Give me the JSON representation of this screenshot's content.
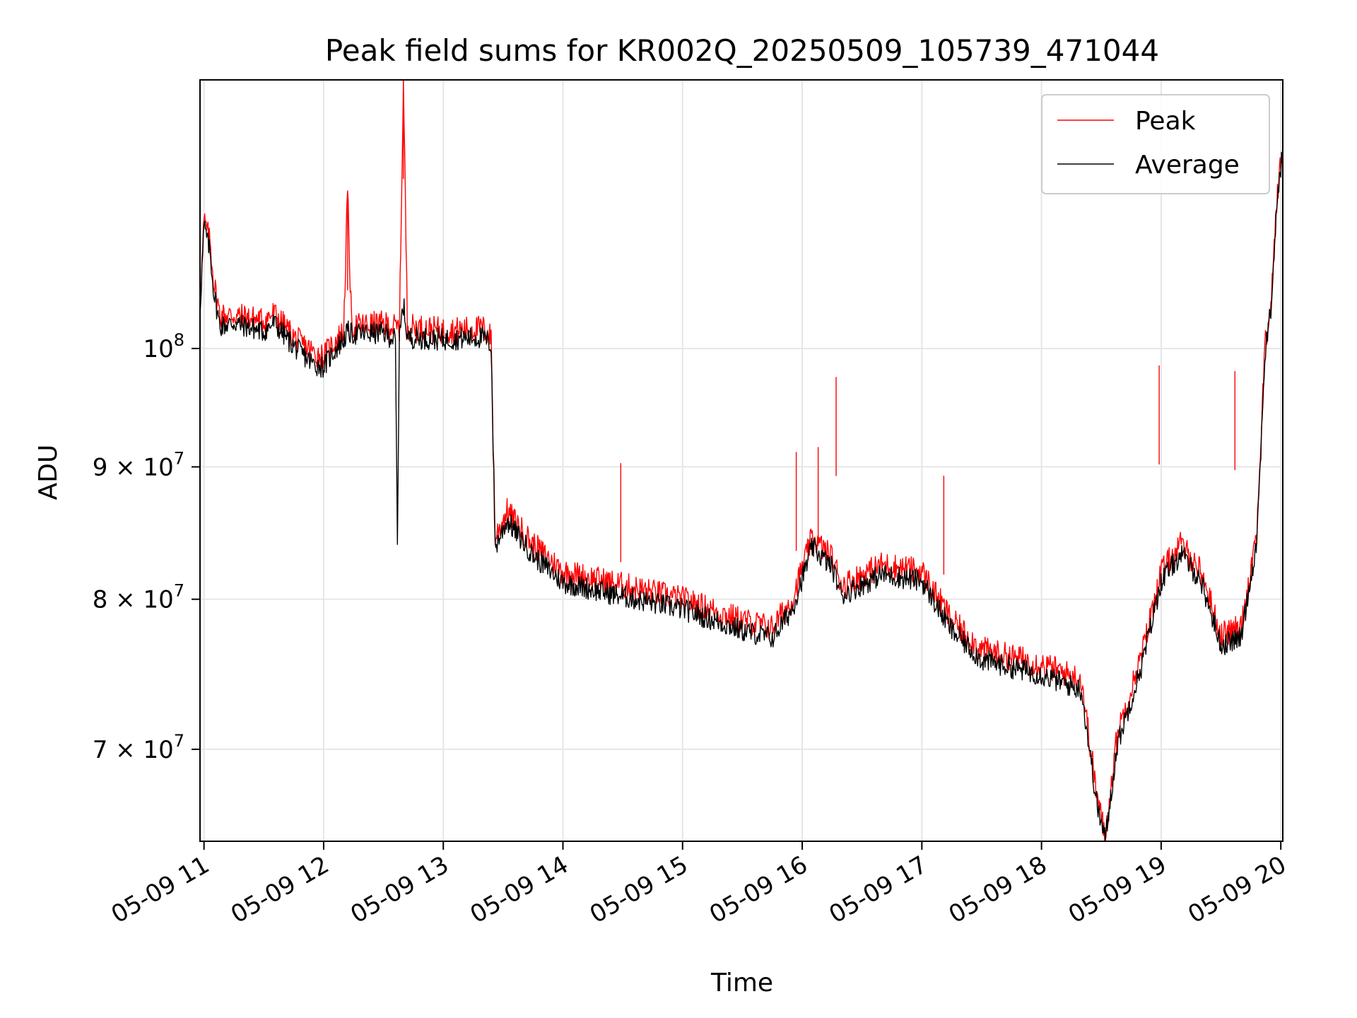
{
  "chart_data": {
    "type": "line",
    "title": "Peak field sums for KR002Q_20250509_105739_471044",
    "xlabel": "Time",
    "ylabel": "ADU",
    "yscale": "log",
    "grid": true,
    "legend_placement": "top-right",
    "xlim": [
      "2025-05-09 10:58",
      "2025-05-09 20:01"
    ],
    "ylim": [
      64500000,
      127000000
    ],
    "x_ticks": [
      {
        "value": "2025-05-09 11:00",
        "label": "05-09 11"
      },
      {
        "value": "2025-05-09 12:00",
        "label": "05-09 12"
      },
      {
        "value": "2025-05-09 13:00",
        "label": "05-09 13"
      },
      {
        "value": "2025-05-09 14:00",
        "label": "05-09 14"
      },
      {
        "value": "2025-05-09 15:00",
        "label": "05-09 15"
      },
      {
        "value": "2025-05-09 16:00",
        "label": "05-09 16"
      },
      {
        "value": "2025-05-09 17:00",
        "label": "05-09 17"
      },
      {
        "value": "2025-05-09 18:00",
        "label": "05-09 18"
      },
      {
        "value": "2025-05-09 19:00",
        "label": "05-09 19"
      },
      {
        "value": "2025-05-09 20:00",
        "label": "05-09 20"
      }
    ],
    "y_ticks": [
      {
        "value": 70000000,
        "base": "7",
        "exp": "7"
      },
      {
        "value": 80000000,
        "base": "8",
        "exp": "7"
      },
      {
        "value": 90000000,
        "base": "9",
        "exp": "7"
      },
      {
        "value": 100000000,
        "base": "",
        "exp": "8"
      }
    ],
    "series": [
      {
        "name": "Peak",
        "color": "#ff0000",
        "points": [
          [
            "2025-05-09 10:58",
            104000000
          ],
          [
            "2025-05-09 11:00",
            112000000
          ],
          [
            "2025-05-09 11:03",
            110000000
          ],
          [
            "2025-05-09 11:05",
            106000000
          ],
          [
            "2025-05-09 11:08",
            103000000
          ],
          [
            "2025-05-09 11:15",
            103000000
          ],
          [
            "2025-05-09 11:30",
            102500000
          ],
          [
            "2025-05-09 11:35",
            103200000
          ],
          [
            "2025-05-09 11:45",
            101000000
          ],
          [
            "2025-05-09 11:55",
            99600000
          ],
          [
            "2025-05-09 12:00",
            99300000
          ],
          [
            "2025-05-09 12:05",
            100500000
          ],
          [
            "2025-05-09 12:10",
            101500000
          ],
          [
            "2025-05-09 12:12",
            115000000
          ],
          [
            "2025-05-09 12:14",
            102000000
          ],
          [
            "2025-05-09 12:30",
            102200000
          ],
          [
            "2025-05-09 12:38",
            101800000
          ],
          [
            "2025-05-09 12:40",
            127000000
          ],
          [
            "2025-05-09 12:42",
            102000000
          ],
          [
            "2025-05-09 13:00",
            101600000
          ],
          [
            "2025-05-09 13:20",
            101800000
          ],
          [
            "2025-05-09 13:24",
            101000000
          ],
          [
            "2025-05-09 13:26",
            84500000
          ],
          [
            "2025-05-09 13:32",
            86500000
          ],
          [
            "2025-05-09 13:45",
            84000000
          ],
          [
            "2025-05-09 14:00",
            82000000
          ],
          [
            "2025-05-09 14:30",
            81000000
          ],
          [
            "2025-05-09 15:00",
            80000000
          ],
          [
            "2025-05-09 15:30",
            78500000
          ],
          [
            "2025-05-09 15:45",
            78000000
          ],
          [
            "2025-05-09 15:55",
            80000000
          ],
          [
            "2025-05-09 16:05",
            84500000
          ],
          [
            "2025-05-09 16:15",
            83000000
          ],
          [
            "2025-05-09 16:20",
            81000000
          ],
          [
            "2025-05-09 16:40",
            82500000
          ],
          [
            "2025-05-09 17:00",
            82000000
          ],
          [
            "2025-05-09 17:15",
            78500000
          ],
          [
            "2025-05-09 17:30",
            76500000
          ],
          [
            "2025-05-09 18:00",
            75500000
          ],
          [
            "2025-05-09 18:20",
            74500000
          ],
          [
            "2025-05-09 18:28",
            67000000
          ],
          [
            "2025-05-09 18:32",
            64800000
          ],
          [
            "2025-05-09 18:38",
            71000000
          ],
          [
            "2025-05-09 18:50",
            76000000
          ],
          [
            "2025-05-09 19:00",
            82000000
          ],
          [
            "2025-05-09 19:10",
            84000000
          ],
          [
            "2025-05-09 19:20",
            82000000
          ],
          [
            "2025-05-09 19:30",
            77500000
          ],
          [
            "2025-05-09 19:40",
            78000000
          ],
          [
            "2025-05-09 19:48",
            85000000
          ],
          [
            "2025-05-09 19:52",
            100000000
          ],
          [
            "2025-05-09 19:55",
            104000000
          ],
          [
            "2025-05-09 19:58",
            114000000
          ],
          [
            "2025-05-09 20:01",
            120000000
          ]
        ]
      },
      {
        "name": "Average",
        "color": "#000000",
        "points": [
          [
            "2025-05-09 10:58",
            103500000
          ],
          [
            "2025-05-09 11:00",
            111500000
          ],
          [
            "2025-05-09 11:03",
            109000000
          ],
          [
            "2025-05-09 11:05",
            105000000
          ],
          [
            "2025-05-09 11:08",
            102000000
          ],
          [
            "2025-05-09 11:15",
            102300000
          ],
          [
            "2025-05-09 11:30",
            101500000
          ],
          [
            "2025-05-09 11:35",
            102300000
          ],
          [
            "2025-05-09 11:45",
            100200000
          ],
          [
            "2025-05-09 11:55",
            98600000
          ],
          [
            "2025-05-09 12:00",
            98400000
          ],
          [
            "2025-05-09 12:05",
            99700000
          ],
          [
            "2025-05-09 12:10",
            100800000
          ],
          [
            "2025-05-09 12:12",
            101500000
          ],
          [
            "2025-05-09 12:14",
            101300000
          ],
          [
            "2025-05-09 12:30",
            101400000
          ],
          [
            "2025-05-09 12:36",
            100800000
          ],
          [
            "2025-05-09 12:37",
            84000000
          ],
          [
            "2025-05-09 12:38",
            101000000
          ],
          [
            "2025-05-09 12:40",
            104000000
          ],
          [
            "2025-05-09 12:42",
            101000000
          ],
          [
            "2025-05-09 13:00",
            100800000
          ],
          [
            "2025-05-09 13:20",
            101000000
          ],
          [
            "2025-05-09 13:24",
            100300000
          ],
          [
            "2025-05-09 13:26",
            83800000
          ],
          [
            "2025-05-09 13:32",
            85800000
          ],
          [
            "2025-05-09 13:45",
            83200000
          ],
          [
            "2025-05-09 14:00",
            81200000
          ],
          [
            "2025-05-09 14:30",
            80200000
          ],
          [
            "2025-05-09 15:00",
            79300000
          ],
          [
            "2025-05-09 15:30",
            77800000
          ],
          [
            "2025-05-09 15:45",
            77300000
          ],
          [
            "2025-05-09 15:55",
            79300000
          ],
          [
            "2025-05-09 16:05",
            83800000
          ],
          [
            "2025-05-09 16:15",
            82300000
          ],
          [
            "2025-05-09 16:20",
            80300000
          ],
          [
            "2025-05-09 16:40",
            81800000
          ],
          [
            "2025-05-09 17:00",
            81300000
          ],
          [
            "2025-05-09 17:15",
            77800000
          ],
          [
            "2025-05-09 17:30",
            75800000
          ],
          [
            "2025-05-09 18:00",
            74800000
          ],
          [
            "2025-05-09 18:20",
            73800000
          ],
          [
            "2025-05-09 18:28",
            66500000
          ],
          [
            "2025-05-09 18:32",
            64600000
          ],
          [
            "2025-05-09 18:38",
            70300000
          ],
          [
            "2025-05-09 18:50",
            75300000
          ],
          [
            "2025-05-09 19:00",
            81300000
          ],
          [
            "2025-05-09 19:10",
            83300000
          ],
          [
            "2025-05-09 19:20",
            81300000
          ],
          [
            "2025-05-09 19:30",
            76800000
          ],
          [
            "2025-05-09 19:40",
            77300000
          ],
          [
            "2025-05-09 19:48",
            84300000
          ],
          [
            "2025-05-09 19:52",
            99300000
          ],
          [
            "2025-05-09 19:55",
            103500000
          ],
          [
            "2025-05-09 19:58",
            113500000
          ],
          [
            "2025-05-09 20:01",
            119500000
          ]
        ]
      }
    ],
    "spikes": [
      {
        "series": "Peak",
        "x": "2025-05-09 12:12",
        "y": 115000000
      },
      {
        "series": "Peak",
        "x": "2025-05-09 12:40",
        "y": 127000000
      },
      {
        "series": "Peak",
        "x": "2025-05-09 14:29",
        "y": 90300000
      },
      {
        "series": "Peak",
        "x": "2025-05-09 15:57",
        "y": 91200000
      },
      {
        "series": "Peak",
        "x": "2025-05-09 16:08",
        "y": 91600000
      },
      {
        "series": "Peak",
        "x": "2025-05-09 16:17",
        "y": 97500000
      },
      {
        "series": "Peak",
        "x": "2025-05-09 17:11",
        "y": 89300000
      },
      {
        "series": "Peak",
        "x": "2025-05-09 18:59",
        "y": 98500000
      },
      {
        "series": "Peak",
        "x": "2025-05-09 19:37",
        "y": 98000000
      }
    ]
  }
}
